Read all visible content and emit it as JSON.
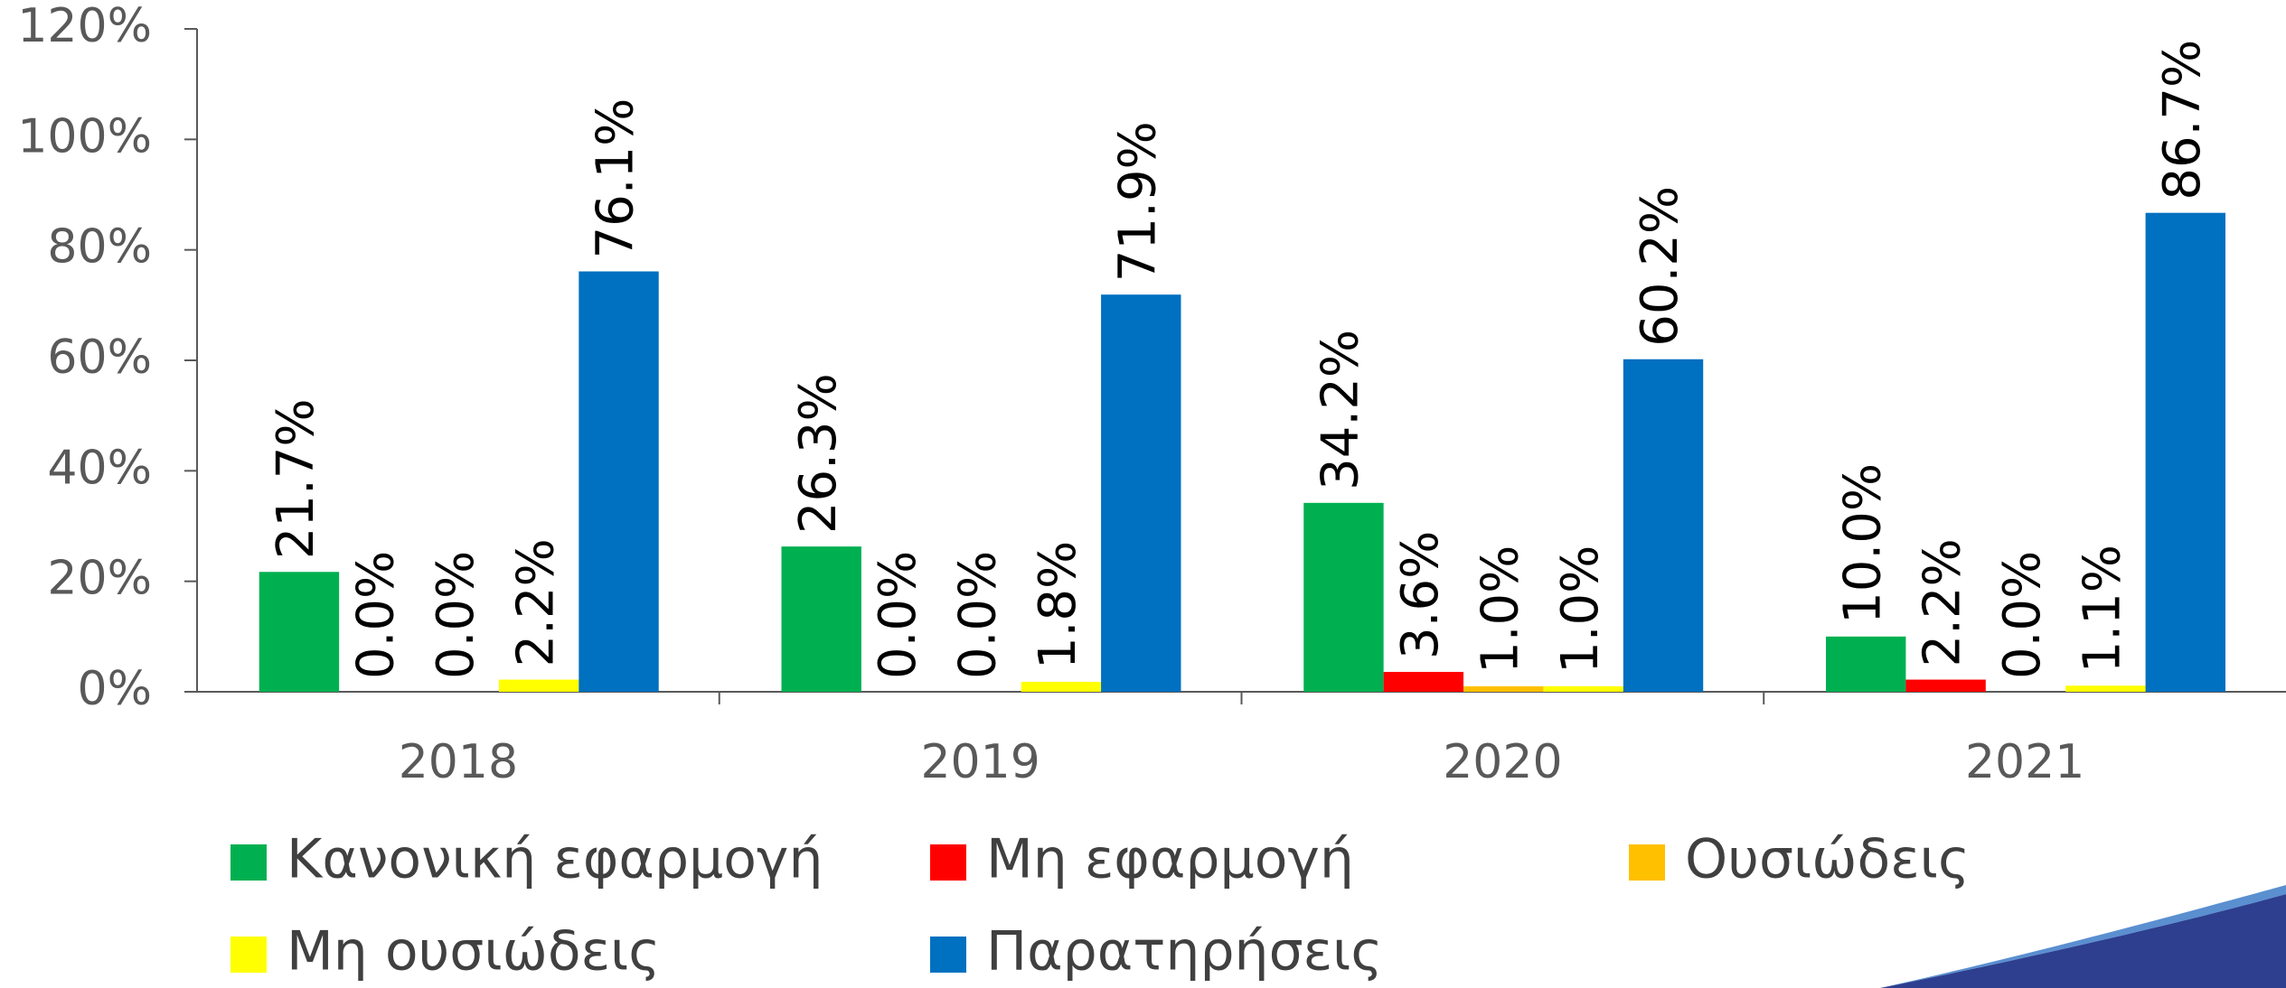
{
  "chart_data": {
    "type": "bar",
    "categories": [
      "2018",
      "2019",
      "2020",
      "2021"
    ],
    "series": [
      {
        "name": "Κανονική εφαρμογή",
        "color": "#00b050",
        "values": [
          21.7,
          26.3,
          34.2,
          10.0
        ],
        "value_labels": [
          "21.7%",
          "26.3%",
          "34.2%",
          "10.0%"
        ]
      },
      {
        "name": "Μη εφαρμογή",
        "color": "#ff0000",
        "values": [
          0.0,
          0.0,
          3.6,
          2.2
        ],
        "value_labels": [
          "0.0%",
          "0.0%",
          "3.6%",
          "2.2%"
        ]
      },
      {
        "name": "Ουσιώδεις",
        "color": "#ffc000",
        "values": [
          0.0,
          0.0,
          1.0,
          0.0
        ],
        "value_labels": [
          "0.0%",
          "0.0%",
          "1.0%",
          "0.0%"
        ]
      },
      {
        "name": "Μη ουσιώδεις",
        "color": "#ffff00",
        "values": [
          2.2,
          1.8,
          1.0,
          1.1
        ],
        "value_labels": [
          "2.2%",
          "1.8%",
          "1.0%",
          "1.1%"
        ]
      },
      {
        "name": "Παρατηρήσεις",
        "color": "#0070c0",
        "values": [
          76.1,
          71.9,
          60.2,
          86.7
        ],
        "value_labels": [
          "76.1%",
          "71.9%",
          "60.2%",
          "86.7%"
        ]
      }
    ],
    "ylim": [
      0,
      120
    ],
    "yticks": [
      {
        "value": 0,
        "label": "0%"
      },
      {
        "value": 20,
        "label": "20%"
      },
      {
        "value": 40,
        "label": "40%"
      },
      {
        "value": 60,
        "label": "60%"
      },
      {
        "value": 80,
        "label": "80%"
      },
      {
        "value": 100,
        "label": "100%"
      },
      {
        "value": 120,
        "label": "120%"
      }
    ],
    "grid": false,
    "legend": "bottom"
  }
}
